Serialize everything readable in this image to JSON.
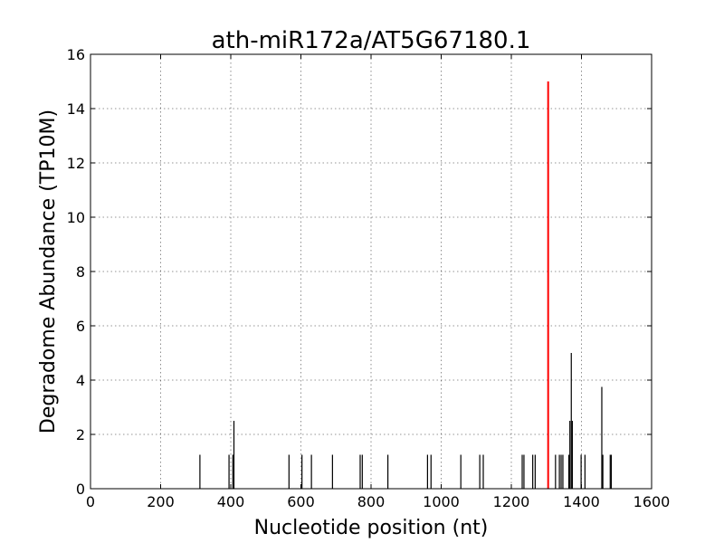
{
  "chart_data": {
    "type": "bar",
    "title": "ath-miR172a/AT5G67180.1",
    "xlabel": "Nucleotide position (nt)",
    "ylabel": "Degradome Abundance (TP10M)",
    "xlim": [
      0,
      1600
    ],
    "ylim": [
      0,
      16
    ],
    "xticks": [
      0,
      200,
      400,
      600,
      800,
      1000,
      1200,
      1400,
      1600
    ],
    "yticks": [
      0,
      2,
      4,
      6,
      8,
      10,
      12,
      14,
      16
    ],
    "grid": true,
    "series": [
      {
        "color": "#000000",
        "x": [
          312,
          395,
          406,
          409,
          566,
          603,
          630,
          690,
          769,
          775,
          848,
          961,
          971,
          1056,
          1110,
          1120,
          1231,
          1236,
          1261,
          1268,
          1326,
          1337,
          1342,
          1347,
          1364,
          1367,
          1371,
          1374,
          1399,
          1410,
          1458,
          1461,
          1482,
          1485
        ],
        "values": [
          1.25,
          1.25,
          1.25,
          2.5,
          1.25,
          1.25,
          1.25,
          1.25,
          1.25,
          1.25,
          1.25,
          1.25,
          1.25,
          1.25,
          1.25,
          1.25,
          1.25,
          1.25,
          1.25,
          1.25,
          1.25,
          1.25,
          1.25,
          1.25,
          1.25,
          2.5,
          5.0,
          2.5,
          1.25,
          1.25,
          3.75,
          1.25,
          1.25,
          1.25
        ]
      },
      {
        "color": "#ff0000",
        "x": [
          1305
        ],
        "values": [
          15.0
        ]
      }
    ]
  }
}
